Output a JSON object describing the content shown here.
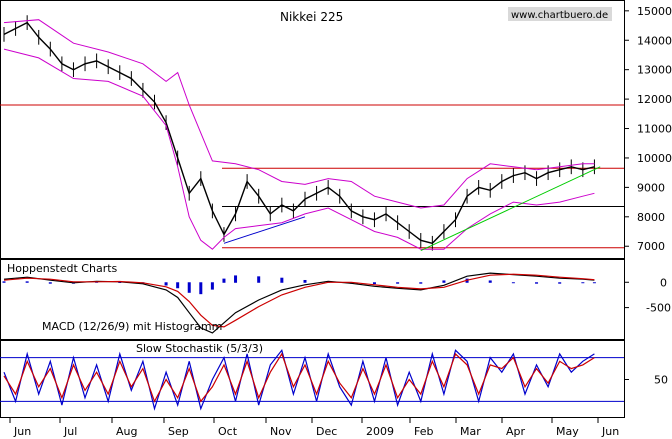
{
  "chart_data": [
    {
      "type": "candlestick",
      "title": "Nikkei 225",
      "watermark": "www.chartbuero.de",
      "xlabel": "",
      "ylabel": "",
      "x_ticks": [
        "Jun",
        "Jul",
        "Aug",
        "Sep",
        "Oct",
        "Nov",
        "Dec",
        "2009",
        "Feb",
        "Mar",
        "Apr",
        "May",
        "Jun"
      ],
      "y_ticks": [
        7000,
        8000,
        9000,
        10000,
        11000,
        12000,
        13000,
        14000,
        15000
      ],
      "ylim": [
        6600,
        15300
      ],
      "horizontal_lines": [
        {
          "value": 11800,
          "color": "#cc0000"
        },
        {
          "value": 9650,
          "color": "#cc0000"
        },
        {
          "value": 8350,
          "color": "#000000"
        },
        {
          "value": 6950,
          "color": "#cc0000"
        }
      ],
      "series": [
        {
          "name": "close_weekly",
          "type": "line",
          "color": "#000000",
          "x": [
            0,
            1,
            2,
            3,
            4,
            5,
            6,
            7,
            8,
            9,
            10,
            11,
            12,
            13,
            14,
            15,
            16,
            17,
            18,
            19,
            20,
            21,
            22,
            23,
            24,
            25,
            26,
            27,
            28,
            29,
            30,
            31,
            32,
            33,
            34,
            35,
            36,
            37,
            38,
            39,
            40,
            41,
            42,
            43,
            44,
            45,
            46,
            47,
            48,
            49,
            50,
            51
          ],
          "values": [
            14200,
            14400,
            14600,
            14100,
            13700,
            13200,
            13000,
            13200,
            13300,
            13100,
            12900,
            12700,
            12300,
            11900,
            11200,
            10000,
            8800,
            9300,
            8200,
            7400,
            8100,
            9200,
            8700,
            8100,
            8400,
            8200,
            8600,
            8800,
            9000,
            8700,
            8200,
            8000,
            7900,
            8100,
            7800,
            7500,
            7200,
            7100,
            7500,
            7900,
            8700,
            9000,
            8900,
            9200,
            9400,
            9500,
            9300,
            9500,
            9600,
            9700,
            9600,
            9700
          ]
        },
        {
          "name": "bollinger_upper",
          "type": "line",
          "color": "#cc00cc",
          "x": [
            0,
            3,
            6,
            9,
            12,
            14,
            15,
            16,
            18,
            20,
            22,
            24,
            26,
            28,
            30,
            32,
            34,
            36,
            38,
            40,
            42,
            44,
            46,
            48,
            50,
            51
          ],
          "values": [
            14600,
            14700,
            13900,
            13600,
            13200,
            12600,
            12900,
            11800,
            9900,
            9800,
            9600,
            9200,
            9100,
            9300,
            9200,
            8700,
            8500,
            8300,
            8400,
            9300,
            9800,
            9700,
            9600,
            9700,
            9800,
            9800
          ]
        },
        {
          "name": "bollinger_lower",
          "type": "line",
          "color": "#cc00cc",
          "x": [
            0,
            3,
            6,
            9,
            12,
            14,
            15,
            16,
            17,
            18,
            19,
            20,
            22,
            24,
            26,
            28,
            30,
            32,
            34,
            36,
            38,
            40,
            42,
            44,
            46,
            48,
            50,
            51
          ],
          "values": [
            13700,
            13400,
            12700,
            12600,
            12100,
            11100,
            9700,
            8000,
            7200,
            6900,
            7300,
            7600,
            7700,
            7800,
            8100,
            8300,
            7900,
            7500,
            7300,
            6900,
            6900,
            7600,
            8100,
            8500,
            8400,
            8500,
            8700,
            8800
          ]
        },
        {
          "name": "trend_blue",
          "type": "line",
          "color": "#0000cc",
          "x": [
            19,
            26
          ],
          "values": [
            7100,
            8000
          ]
        },
        {
          "name": "trend_green",
          "type": "line",
          "color": "#00cc00",
          "x": [
            36,
            51.5
          ],
          "values": [
            6850,
            9700
          ]
        }
      ]
    },
    {
      "type": "line",
      "title": "MACD (12/26/9) mit Histogramm",
      "source_label": "Hoppenstedt Charts",
      "y_ticks": [
        0,
        -500
      ],
      "ylim": [
        -1100,
        400
      ],
      "series": [
        {
          "name": "MACD",
          "color": "#000000",
          "x": [
            0,
            2,
            4,
            6,
            8,
            10,
            12,
            14,
            15,
            16,
            17,
            18,
            19,
            20,
            22,
            24,
            26,
            28,
            30,
            32,
            34,
            36,
            38,
            40,
            42,
            44,
            46,
            48,
            50,
            51
          ],
          "values": [
            60,
            100,
            40,
            -10,
            20,
            10,
            -30,
            -150,
            -300,
            -600,
            -900,
            -1000,
            -800,
            -600,
            -350,
            -150,
            -50,
            20,
            -20,
            -80,
            -120,
            -150,
            -60,
            120,
            180,
            150,
            120,
            80,
            60,
            40
          ]
        },
        {
          "name": "Signal",
          "color": "#cc0000",
          "x": [
            0,
            2,
            4,
            6,
            8,
            10,
            12,
            14,
            15,
            16,
            17,
            18,
            19,
            20,
            22,
            24,
            26,
            28,
            30,
            32,
            34,
            36,
            38,
            40,
            42,
            44,
            46,
            48,
            50,
            51
          ],
          "values": [
            40,
            80,
            60,
            10,
            10,
            15,
            -10,
            -90,
            -180,
            -380,
            -650,
            -850,
            -880,
            -750,
            -480,
            -250,
            -100,
            0,
            0,
            -50,
            -100,
            -130,
            -100,
            40,
            140,
            160,
            140,
            100,
            70,
            50
          ]
        }
      ]
    },
    {
      "type": "line",
      "title": "Slow Stochastik (5/3/3)",
      "y_ticks": [
        50
      ],
      "ylim": [
        0,
        100
      ],
      "horizontal_lines": [
        {
          "value": 80,
          "color": "#0000cc"
        },
        {
          "value": 20,
          "color": "#0000cc"
        }
      ],
      "series": [
        {
          "name": "%K",
          "color": "#0000cc",
          "x": [
            0,
            1,
            2,
            3,
            4,
            5,
            6,
            7,
            8,
            9,
            10,
            11,
            12,
            13,
            14,
            15,
            16,
            17,
            18,
            19,
            20,
            21,
            22,
            23,
            24,
            25,
            26,
            27,
            28,
            29,
            30,
            31,
            32,
            33,
            34,
            35,
            36,
            37,
            38,
            39,
            40,
            41,
            42,
            43,
            44,
            45,
            46,
            47,
            48,
            49,
            50,
            51
          ],
          "values": [
            60,
            20,
            85,
            30,
            75,
            15,
            80,
            25,
            70,
            20,
            85,
            35,
            75,
            10,
            60,
            15,
            75,
            10,
            50,
            80,
            20,
            85,
            15,
            70,
            90,
            30,
            80,
            20,
            85,
            40,
            15,
            75,
            20,
            80,
            15,
            60,
            20,
            85,
            30,
            90,
            75,
            20,
            80,
            60,
            85,
            30,
            70,
            40,
            85,
            60,
            75,
            85
          ]
        },
        {
          "name": "%D",
          "color": "#cc0000",
          "x": [
            0,
            1,
            2,
            3,
            4,
            5,
            6,
            7,
            8,
            9,
            10,
            11,
            12,
            13,
            14,
            15,
            16,
            17,
            18,
            19,
            20,
            21,
            22,
            23,
            24,
            25,
            26,
            27,
            28,
            29,
            30,
            31,
            32,
            33,
            34,
            35,
            36,
            37,
            38,
            39,
            40,
            41,
            42,
            43,
            44,
            45,
            46,
            47,
            48,
            49,
            50,
            51
          ],
          "values": [
            55,
            30,
            75,
            40,
            65,
            25,
            70,
            35,
            60,
            30,
            75,
            40,
            65,
            20,
            50,
            25,
            65,
            20,
            40,
            70,
            30,
            75,
            25,
            60,
            85,
            40,
            70,
            30,
            75,
            45,
            25,
            65,
            30,
            70,
            25,
            50,
            30,
            75,
            40,
            85,
            70,
            30,
            70,
            65,
            80,
            40,
            65,
            45,
            75,
            65,
            70,
            80
          ]
        }
      ]
    }
  ]
}
